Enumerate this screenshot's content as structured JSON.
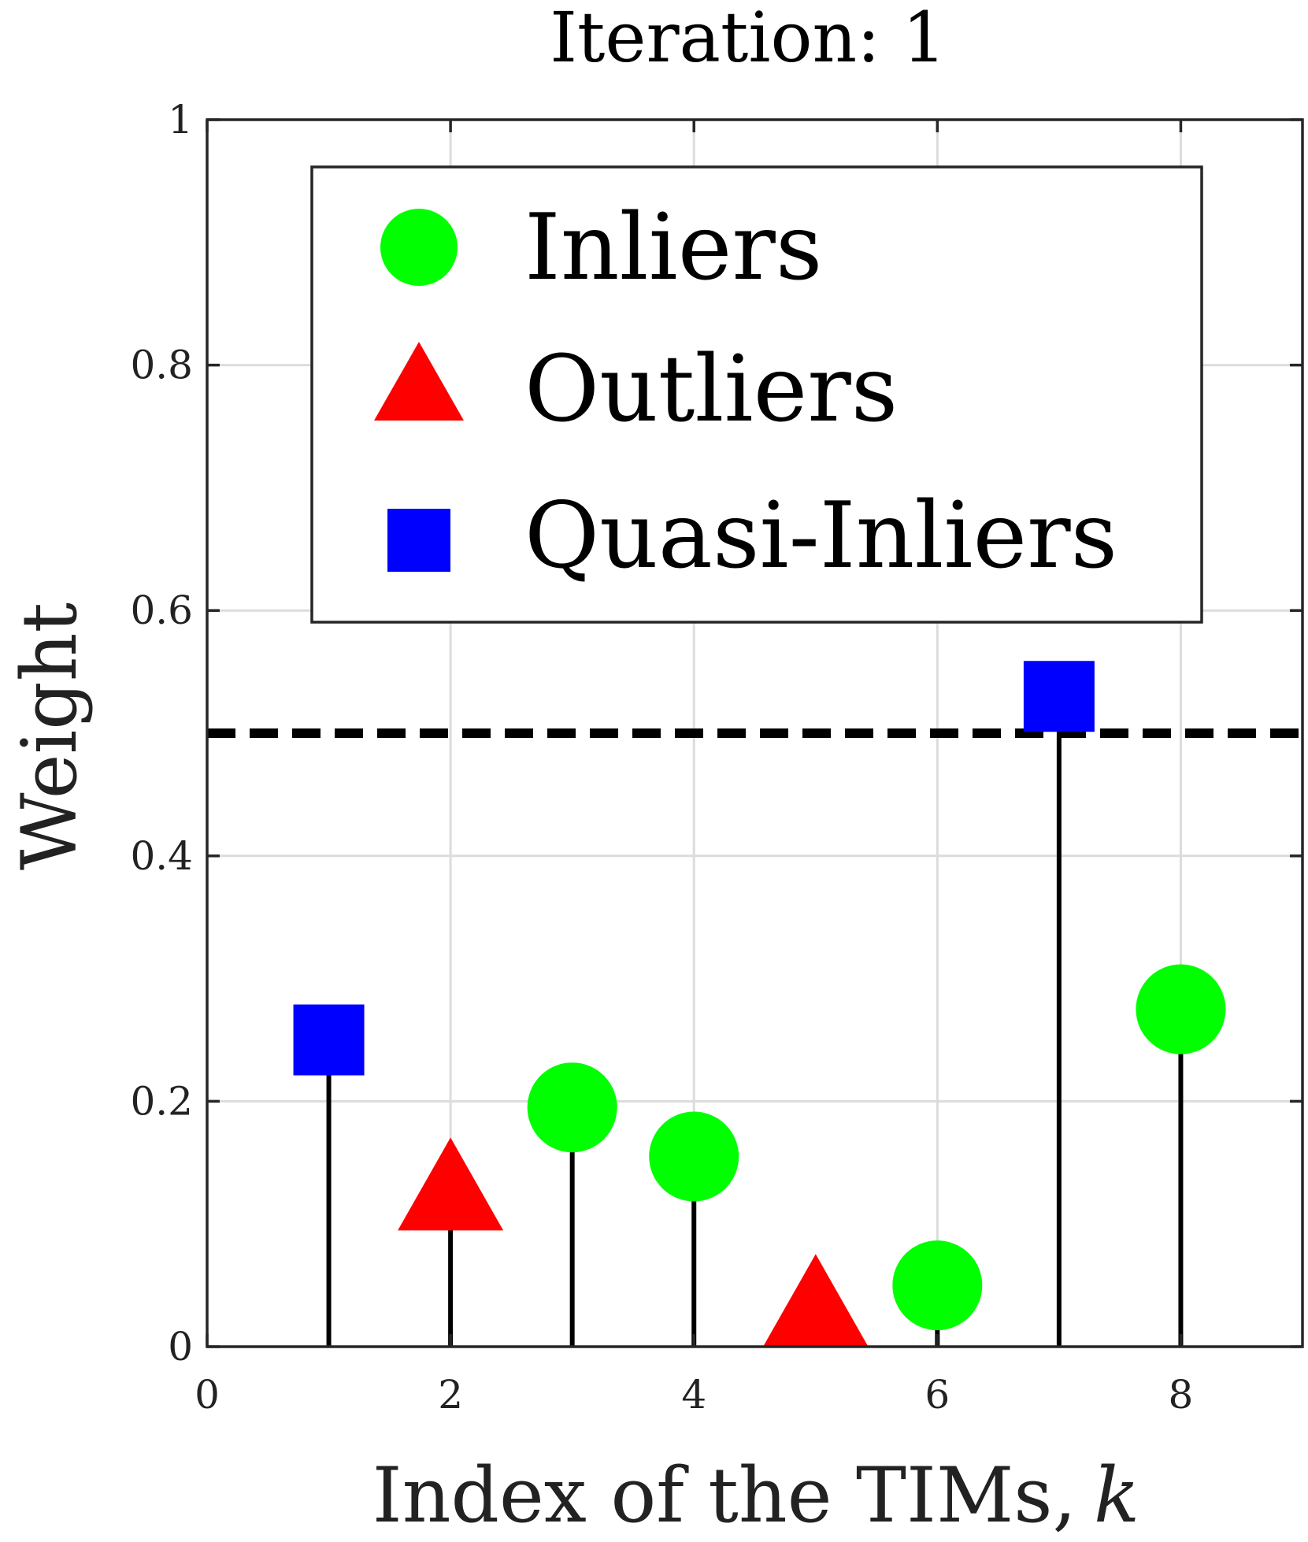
{
  "chart_data": {
    "type": "stem",
    "title": "Iteration: 1",
    "xlabel": "Index of the TIMs,",
    "xlabel_var": "k",
    "ylabel": "Weight",
    "xlim": [
      0,
      9
    ],
    "ylim": [
      0,
      1
    ],
    "xticks": [
      0,
      2,
      4,
      6,
      8
    ],
    "xtick_labels": [
      "0",
      "2",
      "4",
      "6",
      "8"
    ],
    "yticks": [
      0,
      0.2,
      0.4,
      0.6,
      0.8,
      1
    ],
    "ytick_labels": [
      "0",
      "0.2",
      "0.4",
      "0.6",
      "0.8",
      "1"
    ],
    "grid": true,
    "threshold": 0.5,
    "points": [
      {
        "x": 1,
        "y": 0.25,
        "class": "Quasi-Inliers"
      },
      {
        "x": 2,
        "y": 0.12,
        "class": "Outliers"
      },
      {
        "x": 3,
        "y": 0.195,
        "class": "Inliers"
      },
      {
        "x": 4,
        "y": 0.155,
        "class": "Inliers"
      },
      {
        "x": 5,
        "y": 0.025,
        "class": "Outliers"
      },
      {
        "x": 6,
        "y": 0.05,
        "class": "Inliers"
      },
      {
        "x": 7,
        "y": 0.53,
        "class": "Quasi-Inliers"
      },
      {
        "x": 8,
        "y": 0.275,
        "class": "Inliers"
      }
    ],
    "legend": {
      "position": "top",
      "entries": [
        {
          "label": "Inliers",
          "marker": "circle",
          "color": "#00ff00"
        },
        {
          "label": "Outliers",
          "marker": "triangle",
          "color": "#ff0000"
        },
        {
          "label": "Quasi-Inliers",
          "marker": "square",
          "color": "#0000ff"
        }
      ]
    }
  }
}
